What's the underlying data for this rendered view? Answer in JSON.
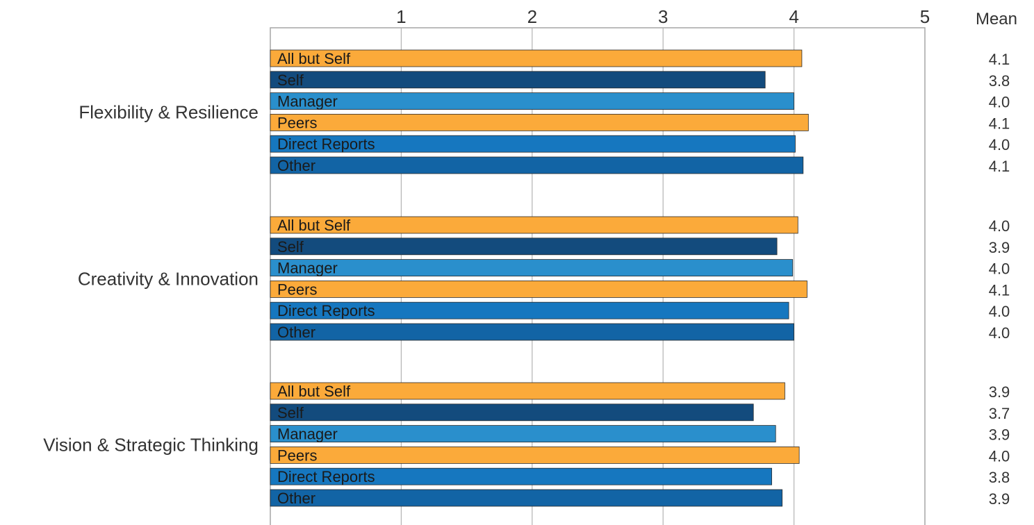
{
  "chart_data": {
    "type": "bar",
    "orientation": "horizontal",
    "title": "",
    "xlabel": "",
    "ylabel": "",
    "xlim": [
      0,
      5
    ],
    "x_ticks": [
      1,
      2,
      3,
      4,
      5
    ],
    "grid": "vertical",
    "mean_header": "Mean",
    "colors": {
      "All but Self": "#fbaa3a",
      "Self": "#134b7d",
      "Manager": "#2a8fcc",
      "Peers": "#fbaa3a",
      "Direct Reports": "#1677bf",
      "Other": "#1264a5"
    },
    "groups": [
      {
        "label": "Flexibility & Resilience",
        "bars": [
          {
            "name": "All but Self",
            "value": 4.06,
            "mean": "4.1"
          },
          {
            "name": "Self",
            "value": 3.78,
            "mean": "3.8"
          },
          {
            "name": "Manager",
            "value": 4.0,
            "mean": "4.0"
          },
          {
            "name": "Peers",
            "value": 4.11,
            "mean": "4.1"
          },
          {
            "name": "Direct Reports",
            "value": 4.01,
            "mean": "4.0"
          },
          {
            "name": "Other",
            "value": 4.07,
            "mean": "4.1"
          }
        ]
      },
      {
        "label": "Creativity & Innovation",
        "bars": [
          {
            "name": "All but Self",
            "value": 4.03,
            "mean": "4.0"
          },
          {
            "name": "Self",
            "value": 3.87,
            "mean": "3.9"
          },
          {
            "name": "Manager",
            "value": 3.99,
            "mean": "4.0"
          },
          {
            "name": "Peers",
            "value": 4.1,
            "mean": "4.1"
          },
          {
            "name": "Direct Reports",
            "value": 3.96,
            "mean": "4.0"
          },
          {
            "name": "Other",
            "value": 4.0,
            "mean": "4.0"
          }
        ]
      },
      {
        "label": "Vision & Strategic Thinking",
        "bars": [
          {
            "name": "All but Self",
            "value": 3.93,
            "mean": "3.9"
          },
          {
            "name": "Self",
            "value": 3.69,
            "mean": "3.7"
          },
          {
            "name": "Manager",
            "value": 3.86,
            "mean": "3.9"
          },
          {
            "name": "Peers",
            "value": 4.04,
            "mean": "4.0"
          },
          {
            "name": "Direct Reports",
            "value": 3.83,
            "mean": "3.8"
          },
          {
            "name": "Other",
            "value": 3.91,
            "mean": "3.9"
          }
        ]
      }
    ]
  }
}
